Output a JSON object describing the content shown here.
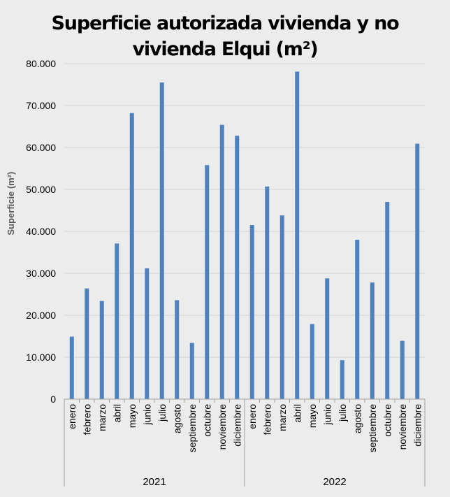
{
  "chart_data": {
    "type": "bar",
    "title_lines": [
      "Superficie autorizada vivienda y no",
      "vivienda Elqui (m²)"
    ],
    "ylabel": "Superficie  (m²)",
    "xlabel": "",
    "ylim": [
      0,
      80000
    ],
    "yticks": [
      0,
      10000,
      20000,
      30000,
      40000,
      50000,
      60000,
      70000,
      80000
    ],
    "ytick_labels": [
      "0",
      "10.000",
      "20.000",
      "30.000",
      "40.000",
      "50.000",
      "60.000",
      "70.000",
      "80.000"
    ],
    "bar_color": "#4f81bd",
    "groups": [
      {
        "label": "2021",
        "categories": [
          "enero",
          "febrero",
          "marzo",
          "abril",
          "mayo",
          "junio",
          "julio",
          "agosto",
          "septiembre",
          "octubre",
          "noviembre",
          "diciembre"
        ],
        "values": [
          14900,
          26400,
          23400,
          37100,
          68200,
          31200,
          75500,
          23600,
          13400,
          55800,
          65400,
          62800
        ]
      },
      {
        "label": "2022",
        "categories": [
          "enero",
          "febrero",
          "marzo",
          "abril",
          "mayo",
          "junio",
          "julio",
          "agosto",
          "septiembre",
          "octubre",
          "noviembre",
          "diciembre"
        ],
        "values": [
          41500,
          50700,
          43800,
          78100,
          17900,
          28800,
          9300,
          38000,
          27800,
          47000,
          13900,
          60900
        ]
      }
    ]
  }
}
